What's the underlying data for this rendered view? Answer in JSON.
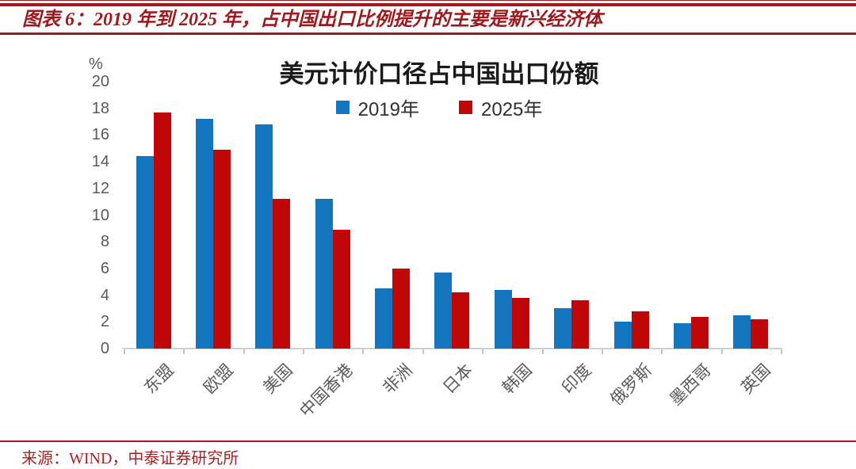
{
  "header": {
    "caption": "图表 6：2019 年到 2025 年，占中国出口比例提升的主要是新兴经济体"
  },
  "source": {
    "text": "来源：WIND，中泰证券研究所"
  },
  "colors": {
    "accent_red": "#9e1a1e",
    "series_2019_blue": "#1375be",
    "series_2025_red": "#c00707",
    "axis_text_gray": "#595959",
    "axis_line_gray": "#d2d2d2"
  },
  "chart_data": {
    "type": "bar",
    "title": "美元计价口径占中国出口份额",
    "unit_label": "%",
    "categories": [
      "东盟",
      "欧盟",
      "美国",
      "中国香港",
      "非洲",
      "日本",
      "韩国",
      "印度",
      "俄罗斯",
      "墨西哥",
      "英国"
    ],
    "series": [
      {
        "name": "2019年",
        "color": "#1375be",
        "values": [
          14.4,
          17.2,
          16.8,
          11.2,
          4.5,
          5.7,
          4.4,
          3.0,
          2.0,
          1.9,
          2.5
        ]
      },
      {
        "name": "2025年",
        "color": "#c00707",
        "values": [
          17.7,
          14.9,
          11.2,
          8.9,
          6.0,
          4.2,
          3.8,
          3.6,
          2.8,
          2.4,
          2.2
        ]
      }
    ],
    "xlabel": "",
    "ylabel": "%",
    "ylim": [
      0,
      20
    ],
    "ytick_step": 2,
    "grid": false,
    "legend_position": "top-center"
  }
}
